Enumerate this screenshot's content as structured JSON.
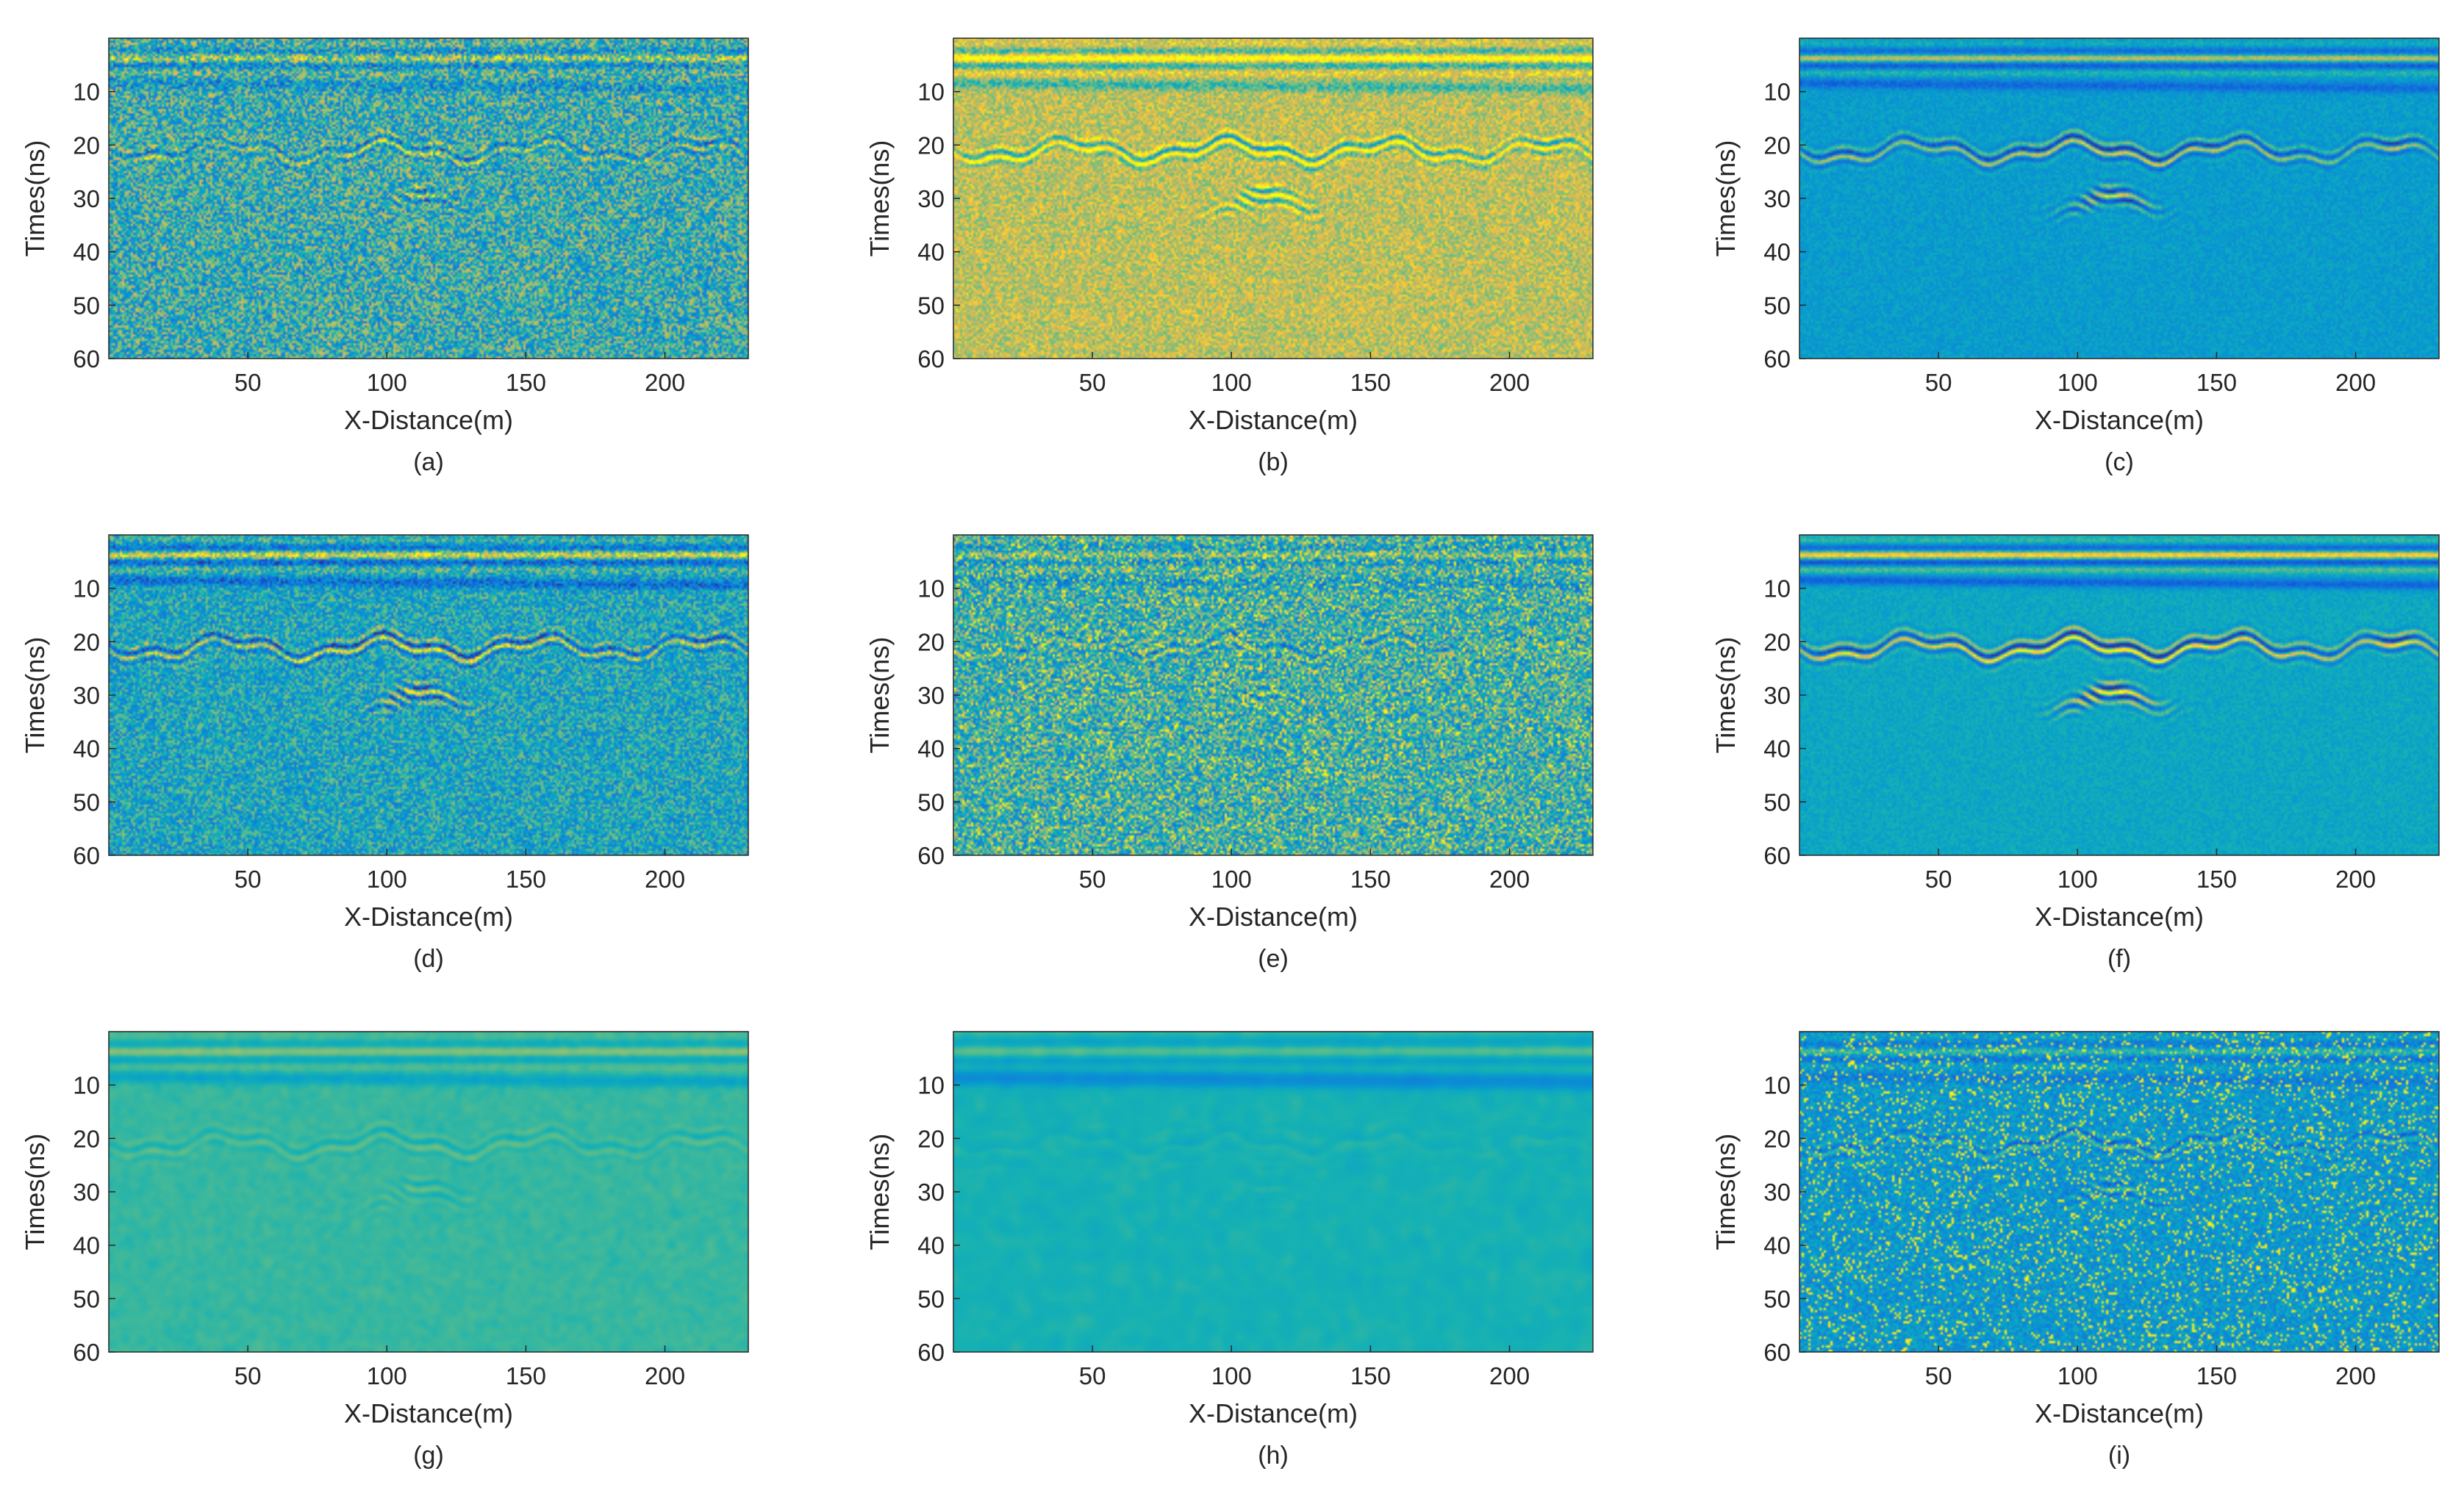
{
  "chart_data": [
    {
      "type": "heatmap",
      "panel_label": "(a)",
      "xlabel": "X-Distance(m)",
      "ylabel": "Times(ns)",
      "xlim": [
        0,
        230
      ],
      "ylim": [
        0,
        60
      ],
      "y_reversed": true,
      "x_ticks": [
        50,
        100,
        150,
        200
      ],
      "y_ticks": [
        10,
        20,
        30,
        40,
        50,
        60
      ],
      "colormap": "parula",
      "background": "#1ab4c0",
      "noise": 0.6,
      "base_level": 0.55,
      "reflector_strength": 0.45,
      "blur": 0
    },
    {
      "type": "heatmap",
      "panel_label": "(b)",
      "xlabel": "X-Distance(m)",
      "ylabel": "Times(ns)",
      "xlim": [
        0,
        230
      ],
      "ylim": [
        0,
        60
      ],
      "y_reversed": true,
      "x_ticks": [
        50,
        100,
        150,
        200
      ],
      "y_ticks": [
        10,
        20,
        30,
        40,
        50,
        60
      ],
      "colormap": "parula",
      "background": "#b9c22f",
      "noise": 0.3,
      "base_level": 0.8,
      "reflector_strength": 0.6,
      "blur": 0
    },
    {
      "type": "heatmap",
      "panel_label": "(c)",
      "xlabel": "X-Distance(m)",
      "ylabel": "Times(ns)",
      "xlim": [
        0,
        230
      ],
      "ylim": [
        0,
        60
      ],
      "y_reversed": true,
      "x_ticks": [
        50,
        100,
        150,
        200
      ],
      "y_ticks": [
        10,
        20,
        30,
        40,
        50,
        60
      ],
      "colormap": "parula",
      "background": "#1c97e2",
      "noise": 0.15,
      "base_level": 0.45,
      "reflector_strength": 0.7,
      "blur": 0
    },
    {
      "type": "heatmap",
      "panel_label": "(d)",
      "xlabel": "X-Distance(m)",
      "ylabel": "Times(ns)",
      "xlim": [
        0,
        230
      ],
      "ylim": [
        0,
        60
      ],
      "y_reversed": true,
      "x_ticks": [
        50,
        100,
        150,
        200
      ],
      "y_ticks": [
        10,
        20,
        30,
        40,
        50,
        60
      ],
      "colormap": "parula",
      "background": "#17a8cc",
      "noise": 0.45,
      "base_level": 0.5,
      "reflector_strength": 0.75,
      "blur": 0
    },
    {
      "type": "heatmap",
      "panel_label": "(e)",
      "xlabel": "X-Distance(m)",
      "ylabel": "Times(ns)",
      "xlim": [
        0,
        230
      ],
      "ylim": [
        0,
        60
      ],
      "y_reversed": true,
      "x_ticks": [
        50,
        100,
        150,
        200
      ],
      "y_ticks": [
        10,
        20,
        30,
        40,
        50,
        60
      ],
      "colormap": "parula",
      "background": "#1ab2c2",
      "noise": 0.55,
      "base_level": 0.55,
      "reflector_strength": 0.35,
      "blur": 0,
      "speckle": 0.08
    },
    {
      "type": "heatmap",
      "panel_label": "(f)",
      "xlabel": "X-Distance(m)",
      "ylabel": "Times(ns)",
      "xlim": [
        0,
        230
      ],
      "ylim": [
        0,
        60
      ],
      "y_reversed": true,
      "x_ticks": [
        50,
        100,
        150,
        200
      ],
      "y_ticks": [
        10,
        20,
        30,
        40,
        50,
        60
      ],
      "colormap": "parula",
      "background": "#1ba6d2",
      "noise": 0.12,
      "base_level": 0.5,
      "reflector_strength": 0.9,
      "blur": 0
    },
    {
      "type": "heatmap",
      "panel_label": "(g)",
      "xlabel": "X-Distance(m)",
      "ylabel": "Times(ns)",
      "xlim": [
        0,
        230
      ],
      "ylim": [
        0,
        60
      ],
      "y_reversed": true,
      "x_ticks": [
        50,
        100,
        150,
        200
      ],
      "y_ticks": [
        10,
        20,
        30,
        40,
        50,
        60
      ],
      "colormap": "parula",
      "background": "#2cb6b0",
      "noise": 0.15,
      "base_level": 0.6,
      "reflector_strength": 0.4,
      "blur": 1
    },
    {
      "type": "heatmap",
      "panel_label": "(h)",
      "xlabel": "X-Distance(m)",
      "ylabel": "Times(ns)",
      "xlim": [
        0,
        230
      ],
      "ylim": [
        0,
        60
      ],
      "y_reversed": true,
      "x_ticks": [
        50,
        100,
        150,
        200
      ],
      "y_ticks": [
        10,
        20,
        30,
        40,
        50,
        60
      ],
      "colormap": "parula",
      "background": "#1cb0c6",
      "noise": 0.25,
      "base_level": 0.55,
      "reflector_strength": 0.9,
      "blur": 2
    },
    {
      "type": "heatmap",
      "panel_label": "(i)",
      "xlabel": "X-Distance(m)",
      "ylabel": "Times(ns)",
      "xlim": [
        0,
        230
      ],
      "ylim": [
        0,
        60
      ],
      "y_reversed": true,
      "x_ticks": [
        50,
        100,
        150,
        200
      ],
      "y_ticks": [
        10,
        20,
        30,
        40,
        50,
        60
      ],
      "colormap": "parula",
      "background": "#1a8fe0",
      "noise": 0.25,
      "base_level": 0.42,
      "reflector_strength": 0.35,
      "blur": 0,
      "speckle": 0.1
    }
  ]
}
